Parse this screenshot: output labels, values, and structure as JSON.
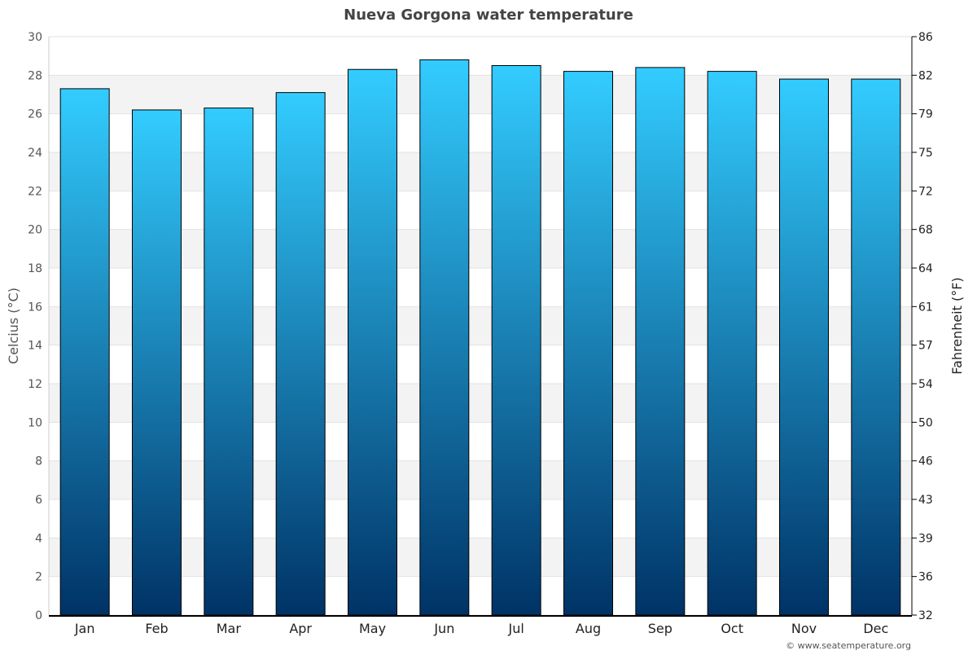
{
  "chart_data": {
    "type": "bar",
    "title": "Nueva Gorgona water temperature",
    "ylabel": "Celcius (°C)",
    "ylabel_right": "Fahrenheit (°F)",
    "categories": [
      "Jan",
      "Feb",
      "Mar",
      "Apr",
      "May",
      "Jun",
      "Jul",
      "Aug",
      "Sep",
      "Oct",
      "Nov",
      "Dec"
    ],
    "values": [
      27.3,
      26.2,
      26.3,
      27.1,
      28.3,
      28.8,
      28.5,
      28.2,
      28.4,
      28.2,
      27.8,
      27.8
    ],
    "ylim": [
      0,
      30
    ],
    "yticks": [
      0,
      2,
      4,
      6,
      8,
      10,
      12,
      14,
      16,
      18,
      20,
      22,
      24,
      26,
      28,
      30
    ],
    "yticks_right": [
      "32",
      "36",
      "39",
      "43",
      "46",
      "50",
      "54",
      "57",
      "61",
      "64",
      "68",
      "72",
      "75",
      "79",
      "82",
      "86"
    ],
    "grid": true,
    "colors": {
      "bar_top": "#33ccff",
      "bar_bottom": "#003366",
      "band": "#f3f3f3"
    }
  },
  "credit": "© www.seatemperature.org"
}
